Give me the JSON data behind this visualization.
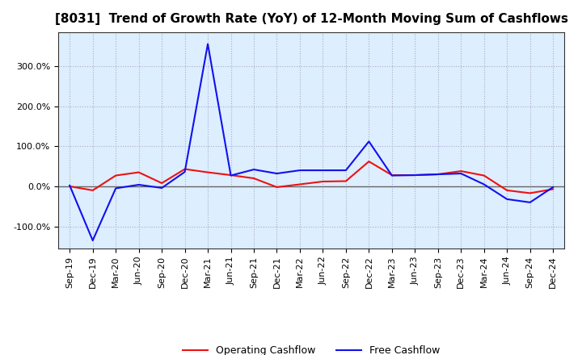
{
  "title": "[8031]  Trend of Growth Rate (YoY) of 12-Month Moving Sum of Cashflows",
  "x_labels": [
    "Sep-19",
    "Dec-19",
    "Mar-20",
    "Jun-20",
    "Sep-20",
    "Dec-20",
    "Mar-21",
    "Jun-21",
    "Sep-21",
    "Dec-21",
    "Mar-22",
    "Jun-22",
    "Sep-22",
    "Dec-22",
    "Mar-23",
    "Jun-23",
    "Sep-23",
    "Dec-23",
    "Mar-24",
    "Jun-24",
    "Sep-24",
    "Dec-24"
  ],
  "operating_cf": [
    0.0,
    -0.1,
    0.27,
    0.35,
    0.08,
    0.43,
    0.35,
    0.28,
    0.2,
    -0.02,
    0.05,
    0.12,
    0.13,
    0.62,
    0.28,
    0.28,
    0.3,
    0.38,
    0.27,
    -0.1,
    -0.17,
    -0.07
  ],
  "free_cf": [
    0.02,
    -1.35,
    -0.05,
    0.04,
    -0.04,
    0.36,
    3.55,
    0.27,
    0.42,
    0.32,
    0.4,
    0.4,
    0.4,
    1.12,
    0.27,
    0.28,
    0.3,
    0.32,
    0.05,
    -0.32,
    -0.4,
    -0.02
  ],
  "operating_color": "#EE1111",
  "free_color": "#1111EE",
  "ylim": [
    -1.55,
    3.85
  ],
  "ytick_vals": [
    -1.0,
    0.0,
    1.0,
    2.0,
    3.0
  ],
  "ytick_labels": [
    "-100.0%",
    "0.0%",
    "100.0%",
    "200.0%",
    "300.0%"
  ],
  "background_color": "#FFFFFF",
  "plot_bg_color": "#DDEEFF",
  "grid_color": "#AAAACC",
  "zero_line_color": "#666666",
  "legend_operating": "Operating Cashflow",
  "legend_free": "Free Cashflow",
  "title_fontsize": 11,
  "tick_fontsize": 8,
  "legend_fontsize": 9
}
